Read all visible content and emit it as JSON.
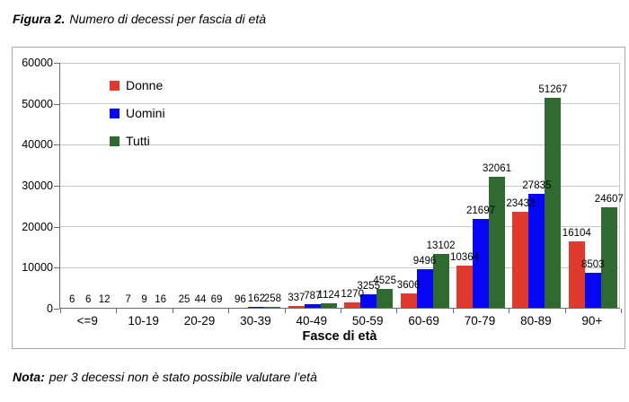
{
  "title": {
    "label": "Figura 2.",
    "text": "Numero di decessi per fascia di età"
  },
  "note": {
    "label": "Nota:",
    "text": "per 3 decessi non è stato possibile valutare l’età"
  },
  "chart_data": {
    "type": "bar",
    "title": "Figura 2. Numero di decessi per fascia di età",
    "xlabel": "Fasce di età",
    "ylabel": "",
    "ylim": [
      0,
      60000
    ],
    "yticks": [
      0,
      10000,
      20000,
      30000,
      40000,
      50000,
      60000
    ],
    "grid": true,
    "legend_position": "upper-left-inside",
    "categories": [
      "<=9",
      "10-19",
      "20-29",
      "30-39",
      "40-49",
      "50-59",
      "60-69",
      "70-79",
      "80-89",
      "90+"
    ],
    "series": [
      {
        "name": "Donne",
        "color": "#e03a2e",
        "values": [
          6,
          7,
          25,
          96,
          337,
          1270,
          3606,
          10364,
          23432,
          16104
        ]
      },
      {
        "name": "Uomini",
        "color": "#0606f2",
        "values": [
          6,
          9,
          44,
          162,
          787,
          3255,
          9496,
          21697,
          27835,
          8503
        ]
      },
      {
        "name": "Tutti",
        "color": "#2f6b31",
        "values": [
          12,
          16,
          69,
          258,
          1124,
          4525,
          13102,
          32061,
          51267,
          24607
        ]
      }
    ],
    "colors": {
      "grid": "#c8c8c8",
      "axis": "#6b6b6b",
      "label_text": "#000000"
    }
  }
}
